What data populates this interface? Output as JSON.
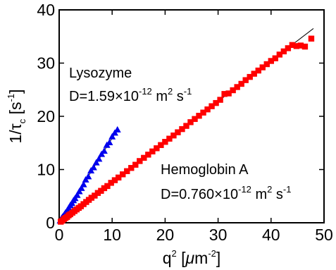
{
  "chart_data": {
    "type": "scatter",
    "xlabel": {
      "main": "q",
      "sup1": "2",
      "mid": " [",
      "mu": "μ",
      "unit": "m",
      "sup2": "-2",
      "close": "]"
    },
    "ylabel": {
      "main": "1/τ",
      "sub": "c",
      "open": " [s",
      "sup": "-1",
      "close": "]"
    },
    "xlim": [
      0,
      50
    ],
    "ylim": [
      0,
      40
    ],
    "xticks": [
      0,
      10,
      20,
      30,
      40,
      50
    ],
    "yticks": [
      0,
      10,
      20,
      30,
      40
    ],
    "grid": false,
    "legend": "none",
    "colors": {
      "hemoglobin": "#ff0000",
      "lysozyme": "#0000ee",
      "fit": "#000000"
    },
    "series": [
      {
        "name": "Lysozyme",
        "marker": "triangle",
        "x": [
          0.2,
          0.4,
          0.6,
          0.8,
          1.0,
          1.2,
          1.5,
          1.8,
          2.1,
          2.4,
          2.7,
          3.0,
          3.4,
          3.8,
          4.2,
          4.6,
          5.0,
          5.5,
          6.0,
          6.5,
          7.0,
          7.5,
          8.0,
          8.5,
          9.0,
          9.5,
          10.0,
          10.5,
          11.0
        ],
        "y": [
          0.4,
          0.8,
          1.1,
          1.3,
          1.6,
          1.9,
          2.3,
          2.8,
          3.3,
          3.7,
          4.2,
          4.6,
          5.2,
          5.9,
          6.5,
          7.2,
          8.1,
          8.7,
          9.8,
          10.4,
          11.3,
          12.0,
          12.9,
          13.5,
          14.6,
          15.1,
          16.2,
          16.9,
          17.5
        ]
      },
      {
        "name": "Hemoglobin A",
        "marker": "square",
        "x": [
          0.3,
          0.6,
          0.9,
          1.2,
          1.5,
          1.8,
          2.1,
          2.5,
          2.9,
          3.3,
          3.7,
          4.1,
          4.6,
          5.1,
          5.6,
          6.1,
          6.7,
          7.3,
          7.9,
          8.5,
          9.1,
          9.8,
          10.5,
          11.2,
          12.0,
          12.8,
          13.6,
          14.4,
          15.2,
          16.0,
          16.8,
          17.6,
          18.4,
          19.2,
          20.0,
          20.8,
          21.6,
          22.4,
          23.2,
          24.0,
          24.8,
          25.6,
          26.4,
          27.2,
          28.0,
          28.8,
          29.6,
          30.4,
          31.2,
          32.0,
          32.8,
          33.6,
          34.4,
          35.2,
          36.0,
          36.8,
          37.6,
          38.4,
          39.2,
          40.0,
          40.8,
          41.6,
          42.4,
          43.2,
          44.0,
          44.8,
          45.6,
          46.4,
          47.6
        ],
        "y": [
          0.2,
          0.4,
          0.7,
          0.9,
          1.1,
          1.4,
          1.6,
          1.9,
          2.2,
          2.5,
          2.8,
          3.1,
          3.5,
          3.9,
          4.3,
          4.7,
          5.1,
          5.6,
          6.0,
          6.5,
          6.9,
          7.5,
          8.0,
          8.5,
          9.1,
          9.7,
          10.3,
          10.9,
          11.6,
          12.2,
          12.8,
          13.4,
          14.0,
          14.6,
          15.2,
          15.8,
          16.4,
          17.0,
          17.6,
          18.2,
          18.9,
          19.5,
          20.1,
          20.7,
          21.3,
          21.9,
          22.5,
          23.1,
          24.2,
          24.3,
          24.9,
          25.5,
          26.1,
          26.8,
          27.4,
          28.0,
          28.6,
          29.2,
          29.8,
          30.4,
          30.9,
          31.6,
          32.2,
          32.8,
          33.4,
          33.2,
          33.3,
          33.1,
          34.6
        ]
      }
    ],
    "fit_lines": [
      {
        "series": "Hemoglobin A",
        "x": [
          0,
          48
        ],
        "y": [
          0,
          36.5
        ]
      },
      {
        "series": "Lysozyme",
        "x": [
          0,
          11
        ],
        "y": [
          0,
          17.5
        ]
      }
    ],
    "annotations": [
      {
        "id": "lyso-name",
        "text": "Lysozyme"
      },
      {
        "id": "lyso-d",
        "parts": {
          "pre": "D=1.59×10",
          "exp": "-12",
          "mid": " m",
          "unit_exp": "2",
          "post": " s",
          "post_exp": "-1"
        }
      },
      {
        "id": "hemo-name",
        "text": "Hemoglobin A"
      },
      {
        "id": "hemo-d",
        "parts": {
          "pre": "D=0.760×10",
          "exp": "-12",
          "mid": " m",
          "unit_exp": "2",
          "post": " s",
          "post_exp": "-1"
        }
      }
    ]
  }
}
